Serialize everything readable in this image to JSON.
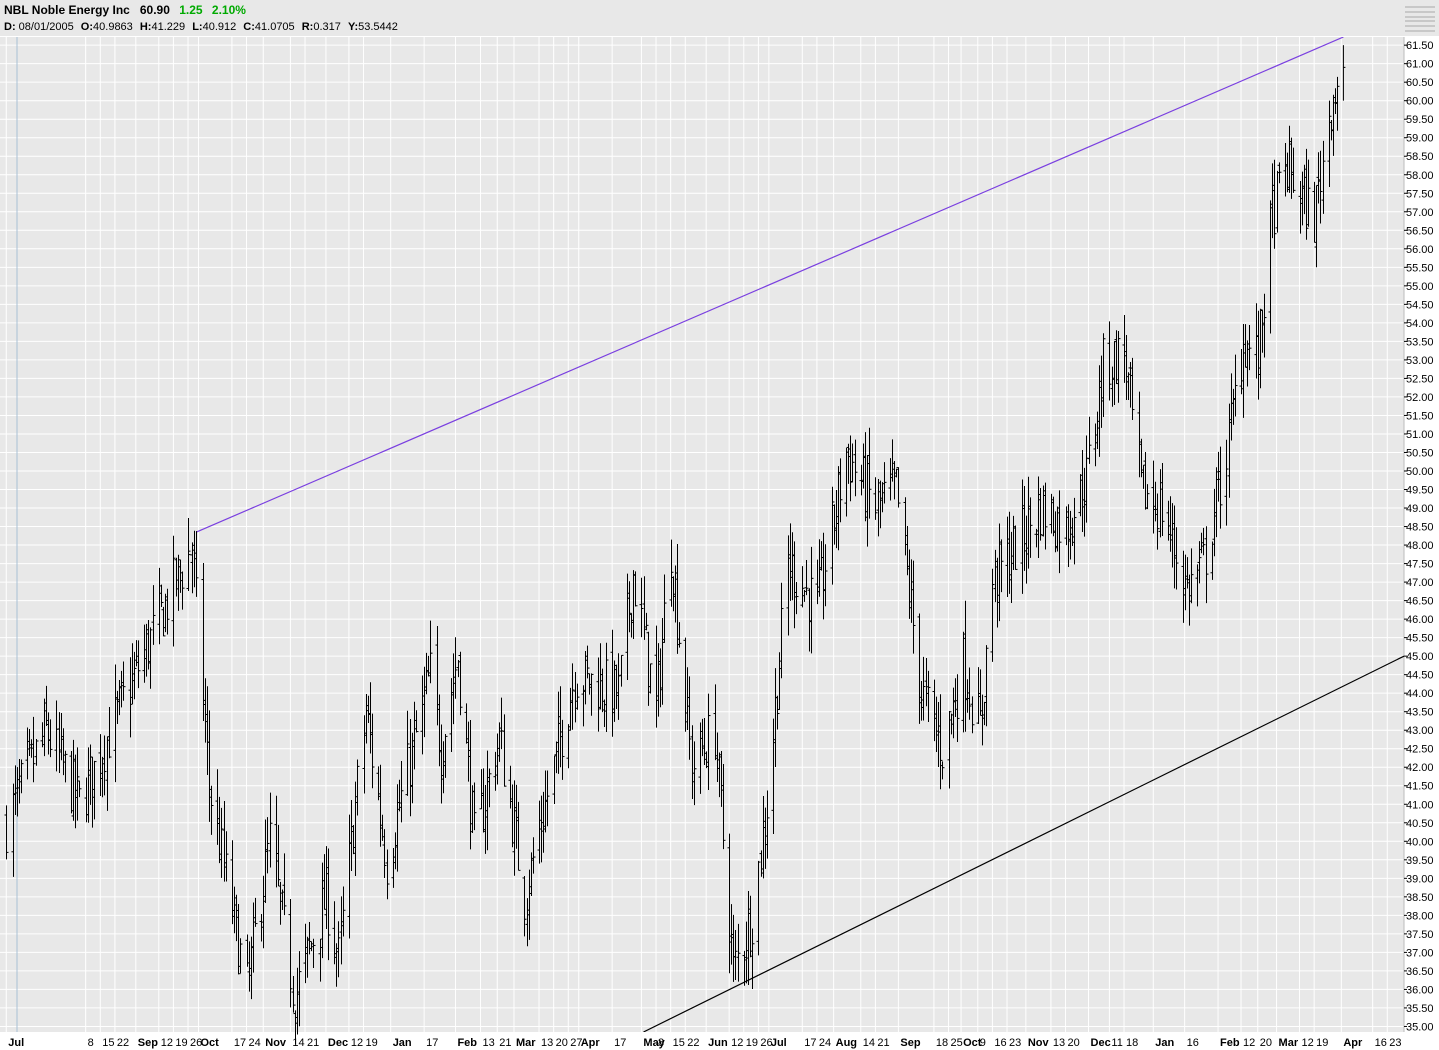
{
  "header": {
    "symbol": "NBL",
    "name": "Noble Energy Inc",
    "last": "60.90",
    "change": "1.25",
    "change_pct": "2.10%",
    "change_color": "#00aa00",
    "info": [
      {
        "label": "D:",
        "value": "08/01/2005"
      },
      {
        "label": "O:",
        "value": "40.9863"
      },
      {
        "label": "H:",
        "value": "41.229"
      },
      {
        "label": "L:",
        "value": "40.912"
      },
      {
        "label": "C:",
        "value": "41.0705"
      },
      {
        "label": "R:",
        "value": "0.317"
      },
      {
        "label": "Y:",
        "value": "53.5442"
      }
    ]
  },
  "chart_data": {
    "type": "ohlc",
    "x_label_dates": [
      {
        "label": "Jul",
        "bold": true,
        "date": "2005-07-01"
      },
      {
        "label": "8",
        "bold": false,
        "date": "2005-08-08"
      },
      {
        "label": "15",
        "bold": false,
        "date": "2005-08-15"
      },
      {
        "label": "22",
        "bold": false,
        "date": "2005-08-22"
      },
      {
        "label": "Sep",
        "bold": true,
        "date": "2005-09-01"
      },
      {
        "label": "12",
        "bold": false,
        "date": "2005-09-12"
      },
      {
        "label": "19",
        "bold": false,
        "date": "2005-09-19"
      },
      {
        "label": "26",
        "bold": false,
        "date": "2005-09-26"
      },
      {
        "label": "Oct",
        "bold": true,
        "date": "2005-10-01"
      },
      {
        "label": "17",
        "bold": false,
        "date": "2005-10-17"
      },
      {
        "label": "24",
        "bold": false,
        "date": "2005-10-24"
      },
      {
        "label": "Nov",
        "bold": true,
        "date": "2005-11-01"
      },
      {
        "label": "14",
        "bold": false,
        "date": "2005-11-14"
      },
      {
        "label": "21",
        "bold": false,
        "date": "2005-11-21"
      },
      {
        "label": "Dec",
        "bold": true,
        "date": "2005-12-01"
      },
      {
        "label": "12",
        "bold": false,
        "date": "2005-12-12"
      },
      {
        "label": "19",
        "bold": false,
        "date": "2005-12-19"
      },
      {
        "label": "Jan",
        "bold": true,
        "date": "2006-01-01"
      },
      {
        "label": "17",
        "bold": false,
        "date": "2006-01-17"
      },
      {
        "label": "Feb",
        "bold": true,
        "date": "2006-02-01"
      },
      {
        "label": "13",
        "bold": false,
        "date": "2006-02-13"
      },
      {
        "label": "21",
        "bold": false,
        "date": "2006-02-21"
      },
      {
        "label": "Mar",
        "bold": true,
        "date": "2006-03-01"
      },
      {
        "label": "13",
        "bold": false,
        "date": "2006-03-13"
      },
      {
        "label": "20",
        "bold": false,
        "date": "2006-03-20"
      },
      {
        "label": "27",
        "bold": false,
        "date": "2006-03-27"
      },
      {
        "label": "Apr",
        "bold": true,
        "date": "2006-04-01"
      },
      {
        "label": "17",
        "bold": false,
        "date": "2006-04-17"
      },
      {
        "label": "May",
        "bold": true,
        "date": "2006-05-01"
      },
      {
        "label": "8",
        "bold": false,
        "date": "2006-05-08"
      },
      {
        "label": "15",
        "bold": false,
        "date": "2006-05-15"
      },
      {
        "label": "22",
        "bold": false,
        "date": "2006-05-22"
      },
      {
        "label": "Jun",
        "bold": true,
        "date": "2006-06-01"
      },
      {
        "label": "12",
        "bold": false,
        "date": "2006-06-12"
      },
      {
        "label": "19",
        "bold": false,
        "date": "2006-06-19"
      },
      {
        "label": "26",
        "bold": false,
        "date": "2006-06-26"
      },
      {
        "label": "Jul",
        "bold": true,
        "date": "2006-07-01"
      },
      {
        "label": "17",
        "bold": false,
        "date": "2006-07-17"
      },
      {
        "label": "24",
        "bold": false,
        "date": "2006-07-24"
      },
      {
        "label": "Aug",
        "bold": true,
        "date": "2006-08-01"
      },
      {
        "label": "14",
        "bold": false,
        "date": "2006-08-14"
      },
      {
        "label": "21",
        "bold": false,
        "date": "2006-08-21"
      },
      {
        "label": "Sep",
        "bold": true,
        "date": "2006-09-01"
      },
      {
        "label": "18",
        "bold": false,
        "date": "2006-09-18"
      },
      {
        "label": "25",
        "bold": false,
        "date": "2006-09-25"
      },
      {
        "label": "Oct",
        "bold": true,
        "date": "2006-10-01"
      },
      {
        "label": "9",
        "bold": false,
        "date": "2006-10-09"
      },
      {
        "label": "16",
        "bold": false,
        "date": "2006-10-16"
      },
      {
        "label": "23",
        "bold": false,
        "date": "2006-10-23"
      },
      {
        "label": "Nov",
        "bold": true,
        "date": "2006-11-01"
      },
      {
        "label": "13",
        "bold": false,
        "date": "2006-11-13"
      },
      {
        "label": "20",
        "bold": false,
        "date": "2006-11-20"
      },
      {
        "label": "Dec",
        "bold": true,
        "date": "2006-12-01"
      },
      {
        "label": "11",
        "bold": false,
        "date": "2006-12-11"
      },
      {
        "label": "18",
        "bold": false,
        "date": "2006-12-18"
      },
      {
        "label": "Jan",
        "bold": true,
        "date": "2007-01-01"
      },
      {
        "label": "16",
        "bold": false,
        "date": "2007-01-16"
      },
      {
        "label": "Feb",
        "bold": true,
        "date": "2007-02-01"
      },
      {
        "label": "12",
        "bold": false,
        "date": "2007-02-12"
      },
      {
        "label": "20",
        "bold": false,
        "date": "2007-02-20"
      },
      {
        "label": "Mar",
        "bold": true,
        "date": "2007-03-01"
      },
      {
        "label": "12",
        "bold": false,
        "date": "2007-03-12"
      },
      {
        "label": "19",
        "bold": false,
        "date": "2007-03-19"
      },
      {
        "label": "Apr",
        "bold": true,
        "date": "2007-04-01"
      },
      {
        "label": "16",
        "bold": false,
        "date": "2007-04-16"
      },
      {
        "label": "23",
        "bold": false,
        "date": "2007-04-23"
      }
    ],
    "y_ticks": [
      "35.00",
      "35.50",
      "36.00",
      "36.50",
      "37.00",
      "37.50",
      "38.00",
      "38.50",
      "39.00",
      "39.50",
      "40.00",
      "40.50",
      "41.00",
      "41.50",
      "42.00",
      "42.50",
      "43.00",
      "43.50",
      "44.00",
      "44.50",
      "45.00",
      "45.50",
      "46.00",
      "46.50",
      "47.00",
      "47.50",
      "48.00",
      "48.50",
      "49.00",
      "49.50",
      "50.00",
      "50.50",
      "51.00",
      "51.50",
      "52.00",
      "52.50",
      "53.00",
      "53.50",
      "54.00",
      "54.50",
      "55.00",
      "55.50",
      "56.00",
      "56.50",
      "57.00",
      "57.50",
      "58.00",
      "58.50",
      "59.00",
      "59.50",
      "60.00",
      "60.50",
      "61.00",
      "61.50"
    ],
    "ylim": [
      34.85,
      61.72
    ],
    "xlim": [
      "2005-06-28",
      "2007-05-01"
    ],
    "grid": true,
    "bar_anchors": [
      {
        "date": "2005-07-01",
        "close": 40.5
      },
      {
        "date": "2005-07-20",
        "close": 43.0
      },
      {
        "date": "2005-08-05",
        "close": 41.0
      },
      {
        "date": "2005-08-26",
        "close": 43.8
      },
      {
        "date": "2005-09-28",
        "close": 48.0
      },
      {
        "date": "2005-10-06",
        "close": 41.5
      },
      {
        "date": "2005-10-24",
        "close": 36.0
      },
      {
        "date": "2005-11-04",
        "close": 40.0
      },
      {
        "date": "2005-11-16",
        "close": 35.8
      },
      {
        "date": "2005-12-01",
        "close": 38.5
      },
      {
        "date": "2005-12-07",
        "close": 36.8
      },
      {
        "date": "2005-12-20",
        "close": 43.5
      },
      {
        "date": "2005-12-30",
        "close": 39.5
      },
      {
        "date": "2006-01-20",
        "close": 44.5
      },
      {
        "date": "2006-01-25",
        "close": 42.5
      },
      {
        "date": "2006-02-02",
        "close": 45.0
      },
      {
        "date": "2006-02-10",
        "close": 40.0
      },
      {
        "date": "2006-02-22",
        "close": 42.8
      },
      {
        "date": "2006-03-06",
        "close": 38.5
      },
      {
        "date": "2006-03-30",
        "close": 44.5
      },
      {
        "date": "2006-04-20",
        "close": 44.0
      },
      {
        "date": "2006-04-27",
        "close": 47.2
      },
      {
        "date": "2006-05-08",
        "close": 43.5
      },
      {
        "date": "2006-05-15",
        "close": 48.0
      },
      {
        "date": "2006-05-25",
        "close": 42.0
      },
      {
        "date": "2006-06-05",
        "close": 43.0
      },
      {
        "date": "2006-06-14",
        "close": 36.5
      },
      {
        "date": "2006-06-23",
        "close": 38.0
      },
      {
        "date": "2006-06-30",
        "close": 41.0
      },
      {
        "date": "2006-07-10",
        "close": 47.5
      },
      {
        "date": "2006-07-24",
        "close": 46.3
      },
      {
        "date": "2006-08-07",
        "close": 50.5
      },
      {
        "date": "2006-08-21",
        "close": 49.0
      },
      {
        "date": "2006-08-31",
        "close": 49.5
      },
      {
        "date": "2006-09-12",
        "close": 44.0
      },
      {
        "date": "2006-09-22",
        "close": 42.5
      },
      {
        "date": "2006-10-02",
        "close": 44.8
      },
      {
        "date": "2006-10-10",
        "close": 43.0
      },
      {
        "date": "2006-10-16",
        "close": 47.0
      },
      {
        "date": "2006-11-08",
        "close": 49.0
      },
      {
        "date": "2006-11-20",
        "close": 48.5
      },
      {
        "date": "2006-11-30",
        "close": 49.8
      },
      {
        "date": "2006-12-08",
        "close": 52.8
      },
      {
        "date": "2006-12-18",
        "close": 53.2
      },
      {
        "date": "2006-12-26",
        "close": 49.5
      },
      {
        "date": "2007-01-05",
        "close": 49.0
      },
      {
        "date": "2007-01-17",
        "close": 46.8
      },
      {
        "date": "2007-01-25",
        "close": 47.5
      },
      {
        "date": "2007-02-05",
        "close": 50.5
      },
      {
        "date": "2007-02-13",
        "close": 53.5
      },
      {
        "date": "2007-02-20",
        "close": 53.0
      },
      {
        "date": "2007-02-27",
        "close": 57.0
      },
      {
        "date": "2007-03-06",
        "close": 58.2
      },
      {
        "date": "2007-03-12",
        "close": 57.5
      },
      {
        "date": "2007-03-19",
        "close": 56.8
      },
      {
        "date": "2007-03-27",
        "close": 60.0
      },
      {
        "date": "2007-04-02",
        "close": 60.9
      }
    ],
    "trendlines": [
      {
        "color": "#7a3fe0",
        "start": {
          "date": "2005-09-30",
          "price": 48.35
        },
        "end": {
          "date": "2007-04-02",
          "price": 61.72
        }
      },
      {
        "color": "#000000",
        "start": {
          "date": "2006-05-02",
          "price": 34.85
        },
        "end": {
          "date": "2007-05-01",
          "price": 45.0
        }
      }
    ]
  }
}
